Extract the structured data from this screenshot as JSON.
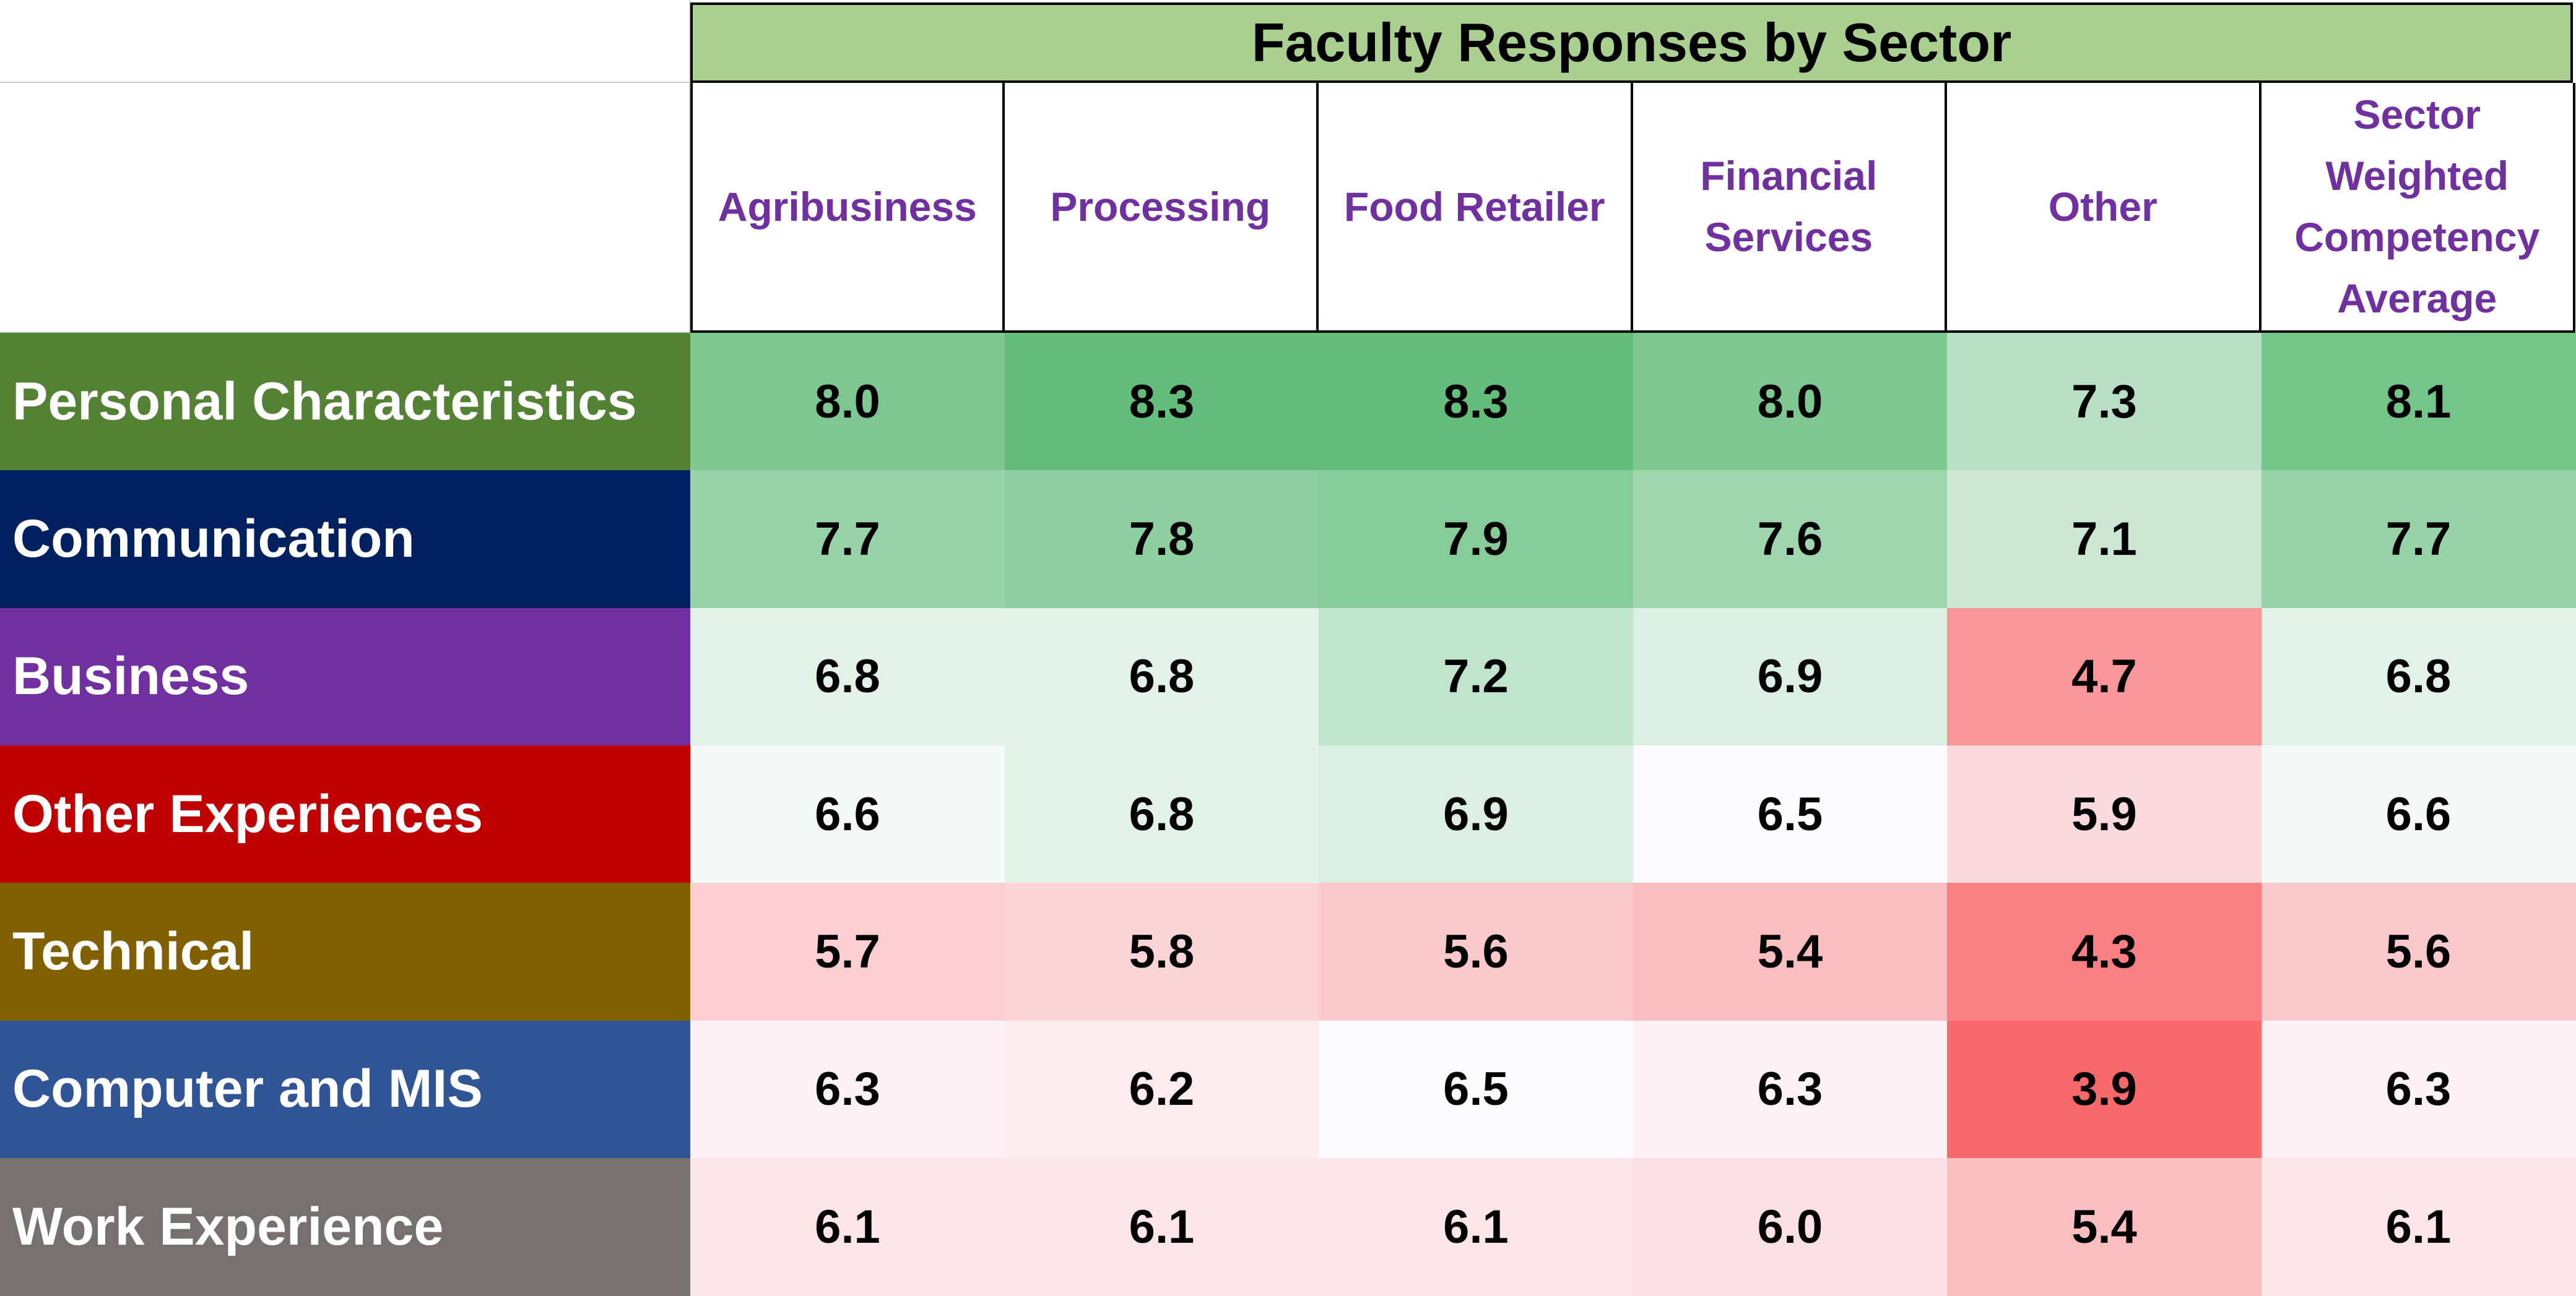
{
  "chart_data": {
    "type": "heatmap",
    "title": "Faculty Responses by Sector",
    "columns": [
      "Agribusiness",
      "Processing",
      "Food Retailer",
      "Financial Services",
      "Other",
      "Sector Weighted Competency Average"
    ],
    "rows": [
      {
        "label": "Personal Characteristics",
        "color": "#548235",
        "values": [
          "8.0",
          "8.3",
          "8.3",
          "8.0",
          "7.3",
          "8.1"
        ]
      },
      {
        "label": "Communication",
        "color": "#002060",
        "values": [
          "7.7",
          "7.8",
          "7.9",
          "7.6",
          "7.1",
          "7.7"
        ]
      },
      {
        "label": "Business",
        "color": "#7030a0",
        "values": [
          "6.8",
          "6.8",
          "7.2",
          "6.9",
          "4.7",
          "6.8"
        ]
      },
      {
        "label": "Other Experiences",
        "color": "#c00000",
        "values": [
          "6.6",
          "6.8",
          "6.9",
          "6.5",
          "5.9",
          "6.6"
        ]
      },
      {
        "label": "Technical",
        "color": "#806000",
        "values": [
          "5.7",
          "5.8",
          "5.6",
          "5.4",
          "4.3",
          "5.6"
        ]
      },
      {
        "label": "Computer and MIS",
        "color": "#2f5597",
        "values": [
          "6.3",
          "6.2",
          "6.5",
          "6.3",
          "3.9",
          "6.3"
        ]
      },
      {
        "label": "Work Experience",
        "color": "#757171",
        "values": [
          "6.1",
          "6.1",
          "6.1",
          "6.0",
          "5.4",
          "6.1"
        ]
      }
    ],
    "color_scale": {
      "low": "#f8696b",
      "mid": "#fcfcff",
      "high": "#63be7b"
    }
  }
}
